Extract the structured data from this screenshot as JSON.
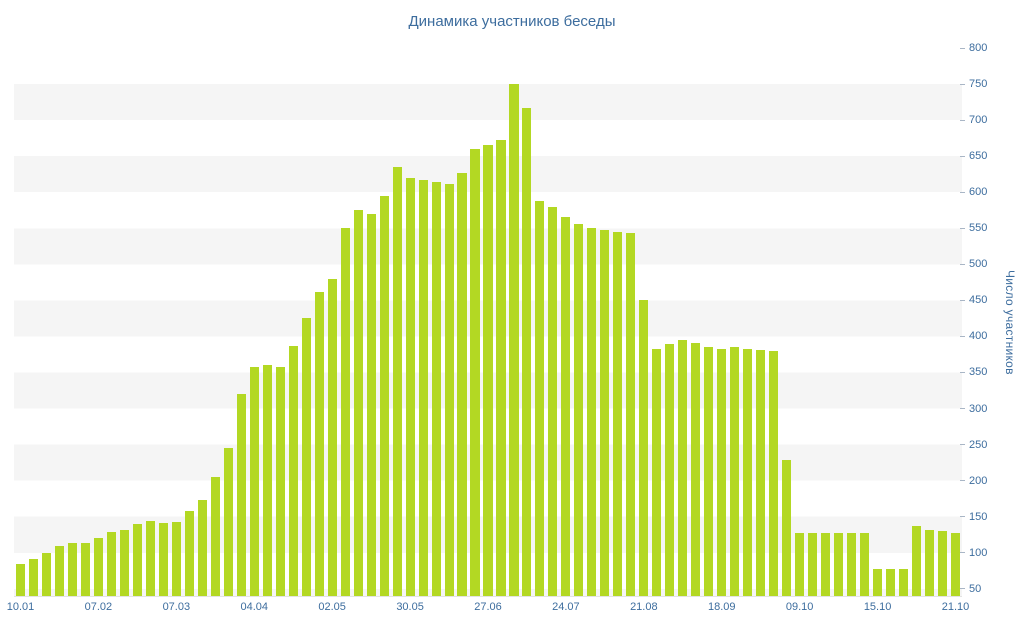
{
  "title": "Динамика участников беседы",
  "y_axis": {
    "title": "Число участников"
  },
  "colors": {
    "bar": "#b3d823",
    "axis_text": "#3d6d9e",
    "stripe": "#f5f5f5",
    "background": "#ffffff"
  },
  "chart_data": {
    "type": "bar",
    "title": "Динамика участников беседы",
    "xlabel": "",
    "ylabel": "Число участников",
    "ylim": [
      40,
      800
    ],
    "y_tick_step": 50,
    "y_ticks": [
      800,
      750,
      700,
      650,
      600,
      550,
      500,
      450,
      400,
      350,
      300,
      250,
      200,
      150,
      100,
      50
    ],
    "grid": "horizontal-stripes",
    "legend": "none",
    "x_tick_labels": [
      "10.01",
      "07.02",
      "07.03",
      "04.04",
      "02.05",
      "30.05",
      "27.06",
      "24.07",
      "21.08",
      "18.09",
      "09.10",
      "15.10",
      "21.10"
    ],
    "x_tick_indices": [
      0,
      6,
      12,
      18,
      24,
      30,
      36,
      42,
      48,
      54,
      60,
      66,
      72
    ],
    "values": [
      85,
      92,
      100,
      110,
      113,
      114,
      121,
      129,
      131,
      140,
      144,
      141,
      143,
      158,
      173,
      205,
      245,
      320,
      358,
      360,
      357,
      387,
      425,
      462,
      480,
      550,
      575,
      570,
      595,
      635,
      620,
      617,
      614,
      611,
      627,
      660,
      665,
      672,
      750,
      717,
      588,
      580,
      565,
      556,
      550,
      548,
      545,
      543,
      450,
      382,
      390,
      395,
      391,
      386,
      383,
      385,
      383,
      381,
      380,
      228,
      128,
      128,
      128,
      128,
      128,
      128,
      78,
      78,
      78,
      137,
      132,
      130,
      128
    ]
  }
}
